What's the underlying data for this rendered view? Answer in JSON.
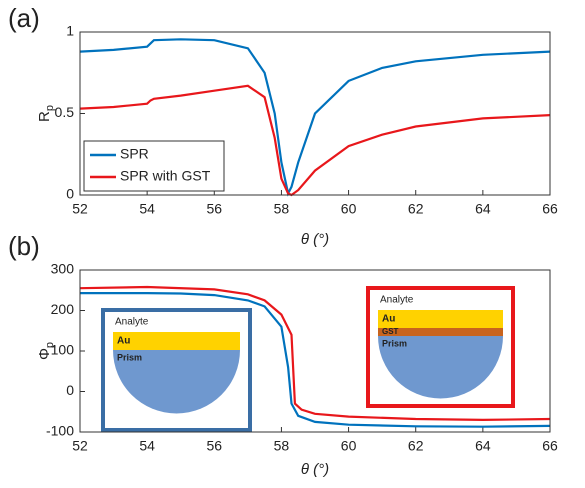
{
  "chart_data": [
    {
      "type": "line",
      "panel_label": "(a)",
      "xlabel": "θ (°)",
      "ylabel": "R",
      "ylabel_sub": "p",
      "xlim": [
        52,
        66
      ],
      "xticks": [
        52,
        54,
        56,
        58,
        60,
        62,
        64,
        66
      ],
      "ylim": [
        0,
        1
      ],
      "yticks": [
        0,
        0.5,
        1
      ],
      "grid": false,
      "legend": "lower left",
      "series": [
        {
          "name": "SPR",
          "color": "#0072bd",
          "x": [
            52,
            53,
            54,
            54.1,
            54.2,
            55,
            56,
            57,
            57.5,
            57.8,
            58,
            58.2,
            58.3,
            58.5,
            59,
            60,
            61,
            62,
            64,
            66
          ],
          "values": [
            0.88,
            0.89,
            0.91,
            0.93,
            0.95,
            0.955,
            0.95,
            0.9,
            0.75,
            0.5,
            0.2,
            0.01,
            0.05,
            0.2,
            0.5,
            0.7,
            0.78,
            0.82,
            0.86,
            0.88
          ]
        },
        {
          "name": "SPR with GST",
          "color": "#e8171b",
          "x": [
            52,
            53,
            54,
            54.1,
            54.2,
            55,
            56,
            57,
            57.5,
            57.8,
            58,
            58.2,
            58.3,
            58.5,
            59,
            60,
            61,
            62,
            64,
            66
          ],
          "values": [
            0.53,
            0.54,
            0.56,
            0.58,
            0.59,
            0.61,
            0.64,
            0.67,
            0.6,
            0.35,
            0.1,
            0.01,
            0.0,
            0.03,
            0.15,
            0.3,
            0.37,
            0.42,
            0.47,
            0.49
          ]
        }
      ]
    },
    {
      "type": "line",
      "panel_label": "(b)",
      "xlabel": "θ (°)",
      "ylabel": "Φ",
      "ylabel_sub": "p",
      "xlim": [
        52,
        66
      ],
      "xticks": [
        52,
        54,
        56,
        58,
        60,
        62,
        64,
        66
      ],
      "ylim": [
        -100,
        300
      ],
      "yticks": [
        -100,
        0,
        100,
        200,
        300
      ],
      "grid": false,
      "series": [
        {
          "color": "#0072bd",
          "x": [
            52,
            54,
            55,
            56,
            57,
            57.5,
            58,
            58.2,
            58.3,
            58.5,
            59,
            60,
            62,
            64,
            66
          ],
          "values": [
            243,
            243,
            242,
            238,
            225,
            210,
            160,
            60,
            -30,
            -60,
            -75,
            -82,
            -86,
            -87,
            -85
          ]
        },
        {
          "color": "#e8171b",
          "x": [
            52,
            54,
            56,
            57,
            57.5,
            58,
            58.3,
            58.4,
            58.6,
            59,
            60,
            62,
            64,
            66
          ],
          "values": [
            255,
            258,
            252,
            240,
            225,
            190,
            140,
            -30,
            -45,
            -55,
            -62,
            -68,
            -70,
            -68
          ]
        }
      ],
      "insets": [
        {
          "color": "#3a6ea5",
          "labels": [
            "Analyte",
            "Au",
            "Prism"
          ]
        },
        {
          "color": "#e8171b",
          "labels": [
            "Analyte",
            "Au",
            "GST",
            "Prism"
          ]
        }
      ]
    }
  ]
}
